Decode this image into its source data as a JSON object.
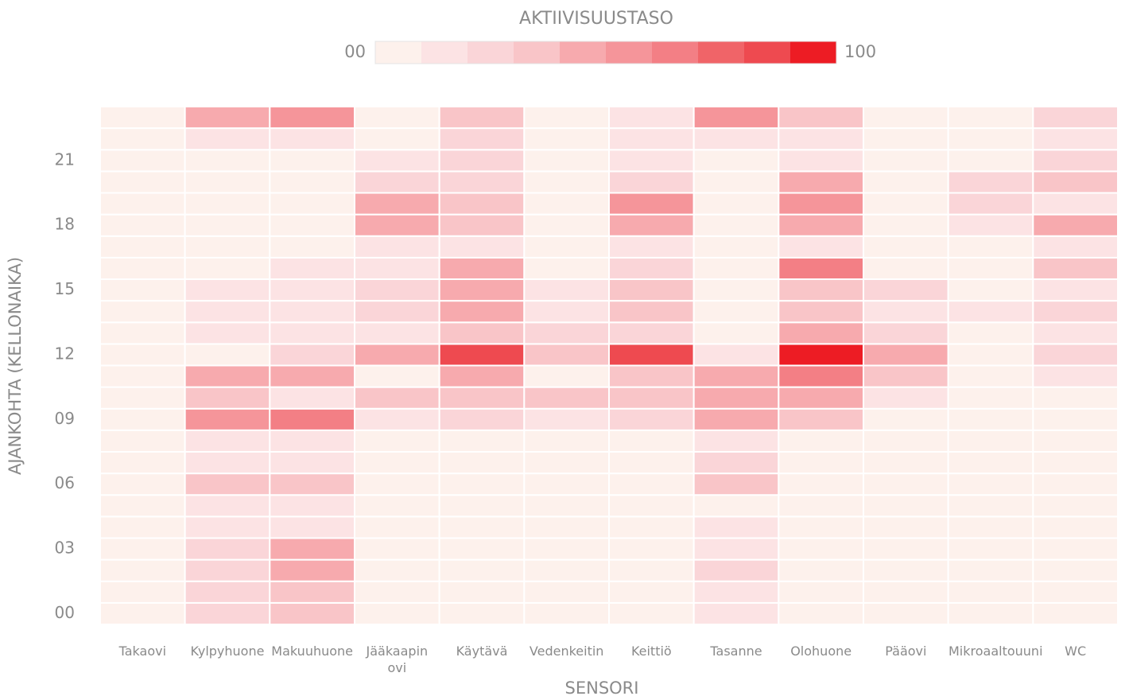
{
  "chart_data": {
    "type": "heatmap",
    "title": "AKTIIVISUUSTASO",
    "x_label": "SENSORI",
    "y_label": "AJANKOHTA (KELLONAIKA)",
    "categories": [
      "Takaovi",
      "Kylpyhuone",
      "Makuuhuone",
      "Jääkaapin ovi",
      "Käytävä",
      "Vedenkeitin",
      "Keittiö",
      "Tasanne",
      "Olohuone",
      "Pääovi",
      "Mikroaaltouuni",
      "WC"
    ],
    "y_categories": [
      "00",
      null,
      null,
      "03",
      null,
      null,
      "06",
      null,
      null,
      "09",
      null,
      null,
      "12",
      null,
      null,
      "15",
      null,
      null,
      "18",
      null,
      null,
      "21",
      null,
      null
    ],
    "values": [
      [
        5,
        25,
        35,
        5,
        5,
        5,
        5,
        15,
        5,
        3,
        3,
        5
      ],
      [
        5,
        25,
        35,
        5,
        5,
        5,
        5,
        15,
        5,
        3,
        3,
        5
      ],
      [
        5,
        25,
        45,
        5,
        5,
        5,
        5,
        25,
        5,
        3,
        3,
        5
      ],
      [
        5,
        25,
        45,
        5,
        5,
        5,
        5,
        15,
        5,
        3,
        3,
        5
      ],
      [
        5,
        15,
        15,
        5,
        5,
        5,
        5,
        15,
        5,
        3,
        3,
        5
      ],
      [
        5,
        15,
        15,
        5,
        5,
        5,
        5,
        3,
        5,
        3,
        3,
        5
      ],
      [
        5,
        35,
        35,
        5,
        5,
        5,
        5,
        35,
        5,
        3,
        3,
        5
      ],
      [
        5,
        15,
        15,
        5,
        5,
        5,
        5,
        25,
        5,
        3,
        3,
        5
      ],
      [
        5,
        15,
        15,
        5,
        5,
        5,
        5,
        15,
        5,
        3,
        3,
        5
      ],
      [
        5,
        55,
        65,
        15,
        25,
        15,
        25,
        45,
        35,
        3,
        3,
        5
      ],
      [
        5,
        35,
        15,
        35,
        35,
        35,
        35,
        45,
        45,
        15,
        5,
        5
      ],
      [
        5,
        45,
        45,
        3,
        45,
        3,
        35,
        45,
        65,
        35,
        5,
        15
      ],
      [
        5,
        5,
        25,
        45,
        85,
        35,
        80,
        15,
        95,
        45,
        5,
        25
      ],
      [
        5,
        15,
        15,
        15,
        35,
        25,
        25,
        5,
        45,
        25,
        5,
        15
      ],
      [
        5,
        15,
        15,
        25,
        45,
        15,
        35,
        5,
        35,
        15,
        15,
        25
      ],
      [
        5,
        15,
        15,
        25,
        45,
        15,
        35,
        5,
        35,
        25,
        5,
        15
      ],
      [
        5,
        5,
        15,
        15,
        45,
        5,
        25,
        5,
        65,
        3,
        3,
        35
      ],
      [
        3,
        3,
        3,
        15,
        15,
        3,
        15,
        3,
        15,
        3,
        3,
        15
      ],
      [
        5,
        5,
        5,
        45,
        35,
        5,
        45,
        5,
        45,
        3,
        15,
        45
      ],
      [
        3,
        3,
        3,
        45,
        35,
        5,
        55,
        5,
        55,
        3,
        25,
        15
      ],
      [
        5,
        5,
        5,
        25,
        25,
        5,
        25,
        5,
        45,
        3,
        25,
        35
      ],
      [
        5,
        5,
        5,
        15,
        25,
        5,
        15,
        5,
        15,
        3,
        3,
        25
      ],
      [
        5,
        15,
        15,
        3,
        25,
        3,
        15,
        15,
        15,
        3,
        3,
        15
      ],
      [
        5,
        45,
        55,
        3,
        30,
        3,
        15,
        55,
        30,
        3,
        3,
        25
      ]
    ],
    "zlim": [
      0,
      100
    ],
    "colorbar_ticks": [
      {
        "value": 0,
        "label": "00"
      },
      100
    ],
    "colorscale": [
      "#fdf1ec",
      "#fce3e4",
      "#fad5d8",
      "#f9c5c8",
      "#f7aaae",
      "#f5959a",
      "#f37f85",
      "#f06468",
      "#ee4a50",
      "#ed1c24"
    ]
  }
}
